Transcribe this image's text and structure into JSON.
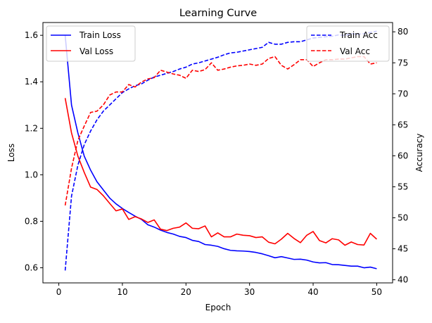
{
  "chart_data": {
    "type": "line",
    "title": "Learning Curve",
    "xlabel": "Epoch",
    "ylabel_left": "Loss",
    "ylabel_right": "Accuracy",
    "xlim": [
      -2.5,
      52.5
    ],
    "ylim_left": [
      0.535,
      1.655
    ],
    "ylim_right": [
      39.5,
      81.5
    ],
    "x_ticks": [
      0,
      10,
      20,
      30,
      40,
      50
    ],
    "y_ticks_left": [
      0.6,
      0.8,
      1.0,
      1.2,
      1.4,
      1.6
    ],
    "y_ticks_right": [
      40,
      45,
      50,
      55,
      60,
      65,
      70,
      75,
      80
    ],
    "grid": false,
    "legend_left": "upper-left",
    "legend_right": "upper-right",
    "x": [
      1,
      2,
      3,
      4,
      5,
      6,
      7,
      8,
      9,
      10,
      11,
      12,
      13,
      14,
      15,
      16,
      17,
      18,
      19,
      20,
      21,
      22,
      23,
      24,
      25,
      26,
      27,
      28,
      29,
      30,
      31,
      32,
      33,
      34,
      35,
      36,
      37,
      38,
      39,
      40,
      41,
      42,
      43,
      44,
      45,
      46,
      47,
      48,
      49,
      50
    ],
    "series": [
      {
        "name": "Train Loss",
        "axis": "left",
        "color": "#0000ff",
        "style": "solid",
        "values": [
          1.6,
          1.3,
          1.18,
          1.08,
          1.02,
          0.97,
          0.935,
          0.9,
          0.875,
          0.855,
          0.838,
          0.822,
          0.808,
          0.785,
          0.775,
          0.762,
          0.752,
          0.745,
          0.735,
          0.73,
          0.718,
          0.713,
          0.7,
          0.697,
          0.692,
          0.682,
          0.675,
          0.673,
          0.672,
          0.67,
          0.666,
          0.66,
          0.652,
          0.643,
          0.648,
          0.642,
          0.636,
          0.637,
          0.633,
          0.625,
          0.621,
          0.622,
          0.614,
          0.613,
          0.61,
          0.607,
          0.607,
          0.6,
          0.603,
          0.596
        ]
      },
      {
        "name": "Val Loss",
        "axis": "left",
        "color": "#ff0000",
        "style": "solid",
        "values": [
          1.33,
          1.18,
          1.08,
          1.01,
          0.947,
          0.937,
          0.91,
          0.877,
          0.845,
          0.853,
          0.808,
          0.82,
          0.81,
          0.795,
          0.806,
          0.766,
          0.76,
          0.77,
          0.775,
          0.793,
          0.77,
          0.768,
          0.78,
          0.733,
          0.75,
          0.733,
          0.733,
          0.745,
          0.74,
          0.738,
          0.73,
          0.733,
          0.71,
          0.703,
          0.723,
          0.748,
          0.726,
          0.708,
          0.74,
          0.756,
          0.717,
          0.707,
          0.725,
          0.72,
          0.697,
          0.711,
          0.7,
          0.698,
          0.748,
          0.723
        ]
      },
      {
        "name": "Train Acc",
        "axis": "right",
        "color": "#0000ff",
        "style": "dashed",
        "values": [
          41.5,
          53.5,
          58.5,
          61.8,
          64.0,
          65.8,
          67.2,
          68.2,
          69.2,
          70.2,
          70.8,
          71.3,
          71.6,
          72.2,
          72.7,
          73.0,
          73.3,
          73.6,
          74.0,
          74.3,
          74.8,
          75.0,
          75.3,
          75.6,
          75.9,
          76.3,
          76.6,
          76.7,
          76.9,
          77.1,
          77.3,
          77.5,
          78.3,
          78.0,
          78.0,
          78.3,
          78.4,
          78.4,
          78.7,
          79.0,
          79.1,
          79.2,
          79.3,
          79.5,
          79.4,
          79.7,
          79.6,
          79.7,
          79.9,
          80.1
        ]
      },
      {
        "name": "Val Acc",
        "axis": "right",
        "color": "#ff0000",
        "style": "dashed",
        "values": [
          52.0,
          58.0,
          62.5,
          64.8,
          67.0,
          67.2,
          68.2,
          69.8,
          70.3,
          70.3,
          71.5,
          71.1,
          71.9,
          72.4,
          72.6,
          73.8,
          73.5,
          73.2,
          73.0,
          72.5,
          73.8,
          73.6,
          73.9,
          75.0,
          73.8,
          74.0,
          74.3,
          74.5,
          74.6,
          74.8,
          74.6,
          74.8,
          75.7,
          76.0,
          74.6,
          74.0,
          74.7,
          75.5,
          75.5,
          74.4,
          75.0,
          75.5,
          75.5,
          75.6,
          75.6,
          75.8,
          76.0,
          76.0,
          74.8,
          75.0
        ]
      }
    ]
  }
}
